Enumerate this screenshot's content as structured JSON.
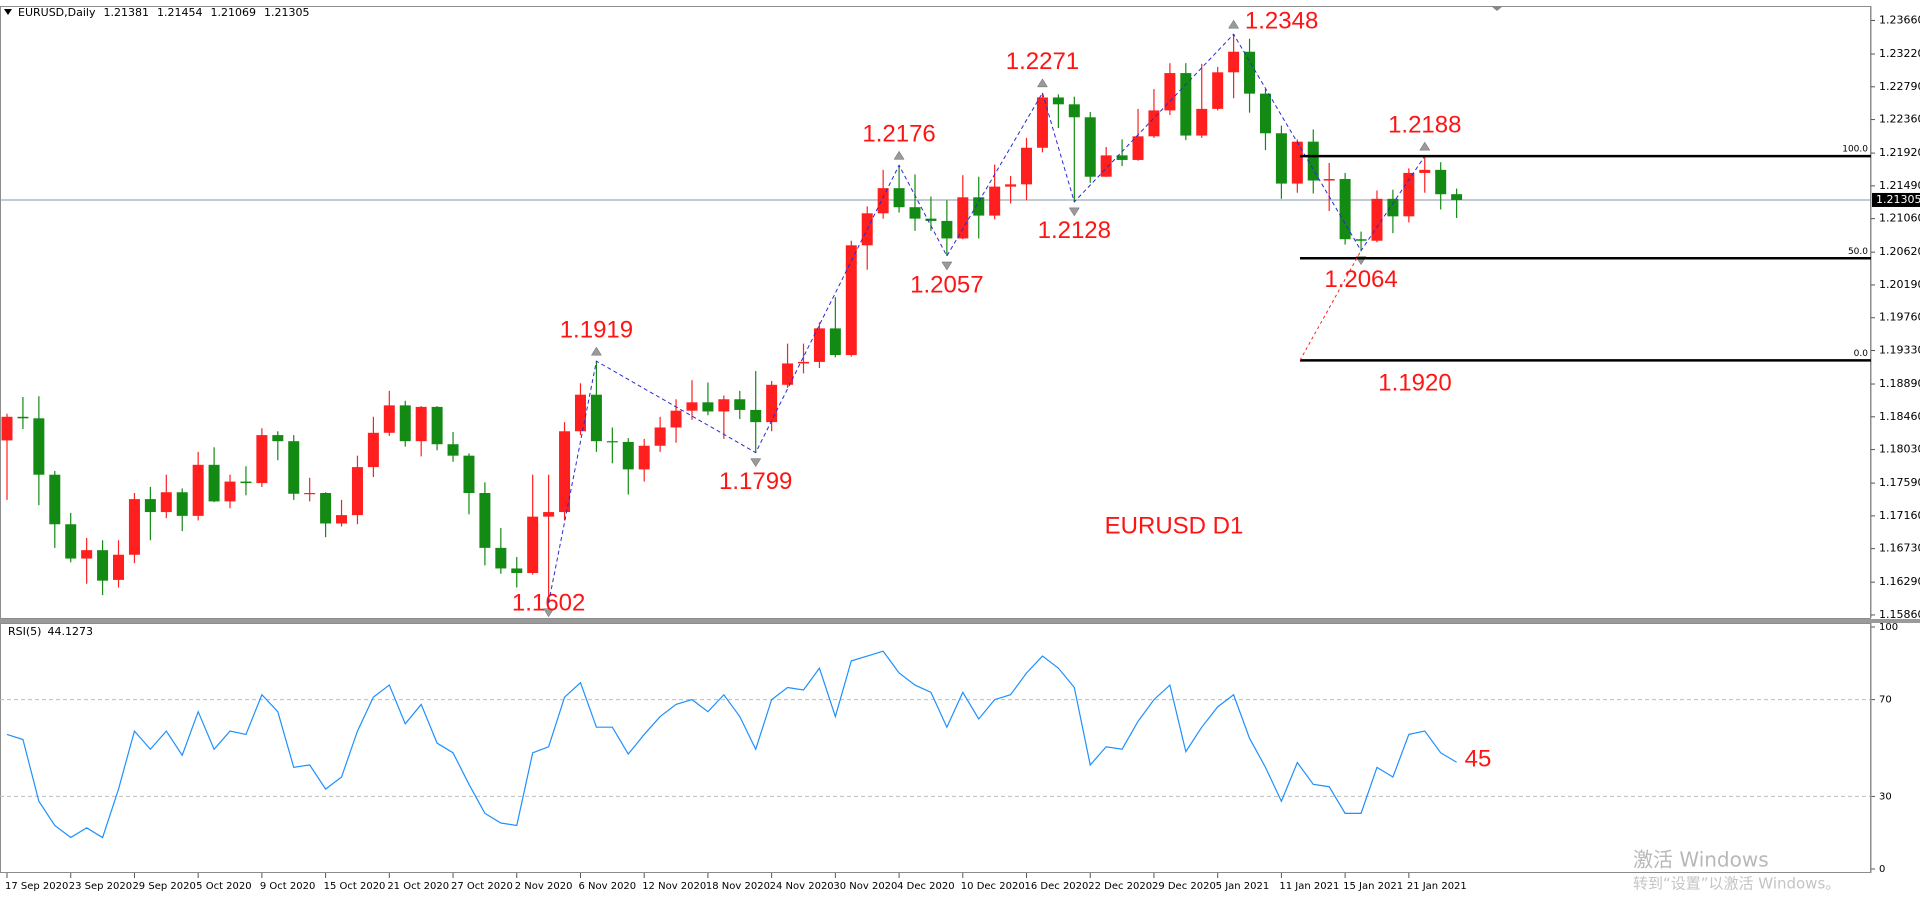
{
  "chart_data": {
    "type": "candlestick",
    "title": "EURUSD,Daily",
    "annotation": "EURUSD D1",
    "categories": [
      "17 Sep 2020",
      null,
      null,
      null,
      "23 Sep 2020",
      null,
      null,
      null,
      "29 Sep 2020",
      null,
      null,
      null,
      "5 Oct 2020",
      null,
      null,
      null,
      "9 Oct 2020",
      null,
      null,
      null,
      "15 Oct 2020",
      null,
      null,
      null,
      "21 Oct 2020",
      null,
      null,
      null,
      "27 Oct 2020",
      null,
      null,
      null,
      "2 Nov 2020",
      null,
      null,
      null,
      "6 Nov 2020",
      null,
      null,
      null,
      "12 Nov 2020",
      null,
      null,
      null,
      "18 Nov 2020",
      null,
      null,
      null,
      "24 Nov 2020",
      null,
      null,
      null,
      "30 Nov 2020",
      null,
      null,
      null,
      "4 Dec 2020",
      null,
      null,
      null,
      "10 Dec 2020",
      null,
      null,
      null,
      "16 Dec 2020",
      null,
      null,
      null,
      "22 Dec 2020",
      null,
      null,
      null,
      "29 Dec 2020",
      null,
      null,
      null,
      "5 Jan 2021",
      null,
      null,
      null,
      "11 Jan 2021",
      null,
      null,
      null,
      "15 Jan 2021",
      null,
      null,
      null,
      "21 Jan 2021",
      null,
      null,
      null
    ],
    "open": [
      1.1815,
      1.1846,
      1.1844,
      1.177,
      1.1705,
      1.166,
      1.1671,
      1.1632,
      1.1665,
      1.1738,
      1.1721,
      1.1747,
      1.1716,
      1.1783,
      1.1735,
      1.1761,
      1.1759,
      1.1822,
      1.1814,
      1.1745,
      1.1746,
      1.1706,
      1.1717,
      1.178,
      1.1825,
      1.1861,
      1.1814,
      1.1859,
      1.181,
      1.1795,
      1.1746,
      1.1674,
      1.1647,
      1.1641,
      1.1715,
      1.1721,
      1.1827,
      1.1875,
      1.1814,
      1.1813,
      1.1777,
      1.1808,
      1.1832,
      1.1854,
      1.1865,
      1.1853,
      1.1869,
      1.1855,
      1.1839,
      1.1888,
      1.1916,
      1.1918,
      1.1962,
      1.1927,
      1.2071,
      1.2113,
      1.2146,
      1.2121,
      1.2106,
      1.2103,
      1.208,
      1.2134,
      1.211,
      1.2148,
      1.2151,
      1.2199,
      1.2265,
      1.2256,
      1.2239,
      1.2161,
      1.2189,
      1.2183,
      1.2214,
      1.2248,
      1.2297,
      1.2215,
      1.225,
      1.2298,
      1.2325,
      1.227,
      1.2218,
      1.2152,
      1.2207,
      1.2156,
      1.2158,
      1.2079,
      1.2077,
      1.2132,
      1.2109,
      1.2166,
      1.217,
      1.21381
    ],
    "high": [
      1.185,
      1.1872,
      1.1873,
      1.1775,
      1.172,
      1.1687,
      1.1684,
      1.1684,
      1.1746,
      1.1754,
      1.177,
      1.1752,
      1.18,
      1.1806,
      1.177,
      1.1781,
      1.1831,
      1.1827,
      1.1822,
      1.1766,
      1.1747,
      1.1737,
      1.1795,
      1.1846,
      1.188,
      1.1867,
      1.186,
      1.186,
      1.1826,
      1.1798,
      1.176,
      1.17,
      1.1662,
      1.177,
      1.177,
      1.1839,
      1.189,
      1.1919,
      1.1832,
      1.1818,
      1.1817,
      1.1846,
      1.1869,
      1.1894,
      1.1891,
      1.1874,
      1.188,
      1.1906,
      1.1893,
      1.1942,
      1.1942,
      1.197,
      1.2003,
      1.2077,
      1.2122,
      1.217,
      1.2176,
      1.2164,
      1.2135,
      1.213,
      1.2163,
      1.2161,
      1.2177,
      1.2162,
      1.2212,
      1.2271,
      1.2269,
      1.2266,
      1.2246,
      1.22,
      1.221,
      1.225,
      1.2276,
      1.231,
      1.231,
      1.2309,
      1.2305,
      1.2348,
      1.2342,
      1.2276,
      1.2228,
      1.221,
      1.2223,
      1.2179,
      1.2166,
      1.2089,
      1.2143,
      1.2144,
      1.2172,
      1.2188,
      1.218,
      1.21454
    ],
    "low": [
      1.1737,
      1.183,
      1.173,
      1.1674,
      1.1655,
      1.1627,
      1.1612,
      1.1622,
      1.1654,
      1.1684,
      1.1713,
      1.1696,
      1.171,
      1.1734,
      1.1726,
      1.1743,
      1.1754,
      1.1789,
      1.1737,
      1.1735,
      1.1688,
      1.1702,
      1.1705,
      1.1767,
      1.1821,
      1.1807,
      1.1794,
      1.1802,
      1.1787,
      1.1718,
      1.1651,
      1.164,
      1.1622,
      1.1639,
      1.1602,
      1.171,
      1.1822,
      1.18,
      1.1785,
      1.1744,
      1.1761,
      1.18,
      1.1812,
      1.1842,
      1.1848,
      1.1817,
      1.1843,
      1.1799,
      1.1827,
      1.1884,
      1.1903,
      1.191,
      1.1924,
      1.1925,
      1.2039,
      1.2106,
      1.2114,
      1.209,
      1.209,
      1.2057,
      1.2079,
      1.208,
      1.2105,
      1.2126,
      1.213,
      1.2193,
      1.2225,
      1.2128,
      1.2153,
      1.2161,
      1.2175,
      1.2182,
      1.2212,
      1.2242,
      1.2209,
      1.2212,
      1.2248,
      1.2264,
      1.2245,
      1.2196,
      1.2132,
      1.214,
      1.2139,
      1.2116,
      1.2072,
      1.2064,
      1.2075,
      1.2087,
      1.2101,
      1.214,
      1.2118,
      1.21069
    ],
    "close": [
      1.1846,
      1.1844,
      1.177,
      1.1705,
      1.166,
      1.1671,
      1.1631,
      1.1665,
      1.1738,
      1.1721,
      1.1747,
      1.1716,
      1.1783,
      1.1735,
      1.1761,
      1.1759,
      1.1822,
      1.1814,
      1.1745,
      1.1746,
      1.1706,
      1.1717,
      1.178,
      1.1825,
      1.1861,
      1.1814,
      1.1859,
      1.181,
      1.1795,
      1.1746,
      1.1674,
      1.1647,
      1.1641,
      1.1715,
      1.1721,
      1.1827,
      1.1875,
      1.1814,
      1.1813,
      1.1777,
      1.1808,
      1.1832,
      1.1854,
      1.1865,
      1.1853,
      1.1869,
      1.1855,
      1.1839,
      1.1888,
      1.1916,
      1.1918,
      1.1962,
      1.1927,
      1.2071,
      1.2113,
      1.2146,
      1.2121,
      1.2106,
      1.2103,
      1.208,
      1.2134,
      1.211,
      1.2148,
      1.2151,
      1.2199,
      1.2265,
      1.2256,
      1.2239,
      1.2161,
      1.2189,
      1.2183,
      1.2214,
      1.2248,
      1.2297,
      1.2215,
      1.225,
      1.2298,
      1.2325,
      1.227,
      1.2218,
      1.2152,
      1.2207,
      1.2156,
      1.2158,
      1.2079,
      1.2077,
      1.2132,
      1.2109,
      1.2166,
      1.217,
      1.2138,
      1.21305
    ],
    "up_color": "#ff1f1f",
    "down_color": "#138a13",
    "ylim": [
      1.1582,
      1.2385
    ],
    "yticks": [
      {
        "value": 1.2366,
        "label": "1.23660"
      },
      {
        "value": 1.2322,
        "label": "1.23220"
      },
      {
        "value": 1.2279,
        "label": "1.22790"
      },
      {
        "value": 1.2236,
        "label": "1.22360"
      },
      {
        "value": 1.2192,
        "label": "1.21920"
      },
      {
        "value": 1.2149,
        "label": "1.21490"
      },
      {
        "value": 1.2106,
        "label": "1.21060"
      },
      {
        "value": 1.2062,
        "label": "1.20620"
      },
      {
        "value": 1.2019,
        "label": "1.20190"
      },
      {
        "value": 1.1976,
        "label": "1.19760"
      },
      {
        "value": 1.1933,
        "label": "1.19330"
      },
      {
        "value": 1.1889,
        "label": "1.18890"
      },
      {
        "value": 1.1846,
        "label": "1.18460"
      },
      {
        "value": 1.1803,
        "label": "1.18030"
      },
      {
        "value": 1.1759,
        "label": "1.17590"
      },
      {
        "value": 1.1716,
        "label": "1.17160"
      },
      {
        "value": 1.1673,
        "label": "1.16730"
      },
      {
        "value": 1.1629,
        "label": "1.16290"
      },
      {
        "value": 1.1586,
        "label": "1.15860"
      }
    ],
    "grid": false,
    "last_price_line": true,
    "swing_labels": [
      1.1602,
      1.1919,
      1.1799,
      1.2176,
      1.2057,
      1.2271,
      1.2128,
      1.2348,
      1.2064,
      1.2188
    ],
    "fib_levels": [
      {
        "value": 100,
        "label": "100.0",
        "price": 1.2188
      },
      {
        "value": 50,
        "label": "50.0",
        "price": 1.2054
      },
      {
        "value": 0,
        "label": "0.0",
        "price": 1.192
      }
    ],
    "fib_annotation": {
      "value": 1.192,
      "label": "1.1920"
    },
    "rsi": {
      "title": "RSI(5)",
      "color": "#1e90ff",
      "values": [
        55.6,
        53.5,
        28,
        18,
        13,
        17,
        13,
        33,
        57,
        49.5,
        57,
        47,
        65,
        49.5,
        57,
        55.6,
        72,
        65,
        42,
        43,
        33,
        38,
        57,
        71,
        76,
        60,
        68,
        52,
        48,
        35,
        23,
        19,
        18,
        48,
        50.5,
        71,
        77,
        58.6,
        58.6,
        47.5,
        55.6,
        63,
        68,
        70,
        65,
        72,
        63,
        49.5,
        70,
        75,
        74,
        83,
        63,
        86,
        88,
        90,
        81,
        76,
        73,
        58.6,
        73,
        62,
        70,
        72,
        81,
        88,
        83,
        75,
        43,
        50.5,
        49.5,
        61,
        70,
        76,
        48.5,
        58.6,
        67,
        72,
        54,
        42,
        28,
        44,
        35,
        34,
        23,
        23,
        42,
        38,
        55.6,
        57,
        48,
        44.1273
      ],
      "ylim": [
        0,
        100
      ],
      "yticks": [
        0,
        30,
        70,
        100
      ],
      "annotation": 45
    }
  },
  "watermark": {
    "title": "激活 Windows",
    "subtitle": "转到“设置”以激活 Windows。"
  }
}
